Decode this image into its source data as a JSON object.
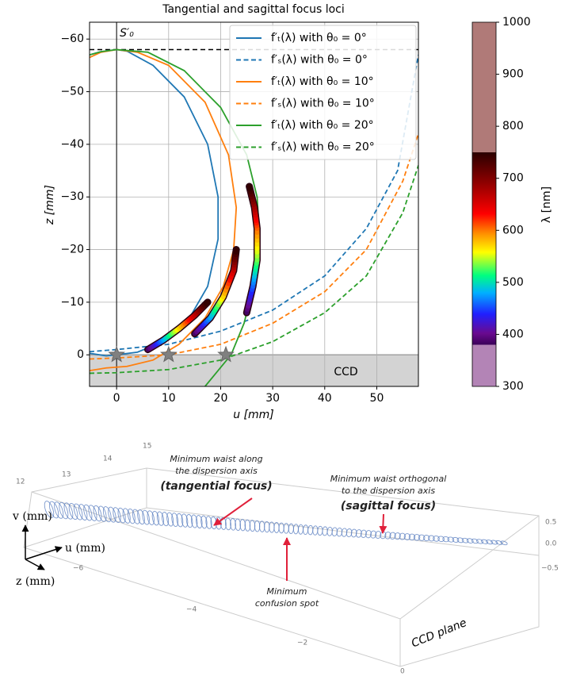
{
  "chart_data": {
    "type": "line",
    "title": "Tangential and sagittal focus loci",
    "xlabel": "u [mm]",
    "ylabel": "z [mm]",
    "xlim": [
      -5.2,
      58
    ],
    "ylim": [
      6,
      -63.2
    ],
    "xticks": [
      0,
      10,
      20,
      30,
      40,
      50
    ],
    "yticks": [
      0,
      {
        "value": -10,
        "label": "−10"
      },
      {
        "value": -20,
        "label": "−20"
      },
      {
        "value": -30,
        "label": "−30"
      },
      {
        "value": -40,
        "label": "−40"
      },
      {
        "value": -50,
        "label": "−50"
      },
      {
        "value": -60,
        "label": "−60"
      }
    ],
    "grid": true,
    "legend": "upper right",
    "series": [
      {
        "name": "f′ₜ(λ) with θ₀ = 0°",
        "color": "#1f77b4",
        "style": "solid",
        "x": [
          -5.2,
          -2,
          0,
          4,
          9,
          14,
          17.5,
          19.5,
          19.5,
          17.5,
          13,
          7,
          2,
          0,
          -3,
          -5.2
        ],
        "y": [
          -0.3,
          0.2,
          0,
          -0.5,
          -2.5,
          -7,
          -13,
          -22,
          -30,
          -40,
          -49,
          -55,
          -57.7,
          -58,
          -57.6,
          -57
        ]
      },
      {
        "name": "f′ₛ(λ) with θ₀ = 0°",
        "color": "#1f77b4",
        "style": "dashed",
        "x": [
          -5.2,
          0,
          10,
          20,
          30,
          40,
          48,
          54,
          58
        ],
        "y": [
          -0.6,
          -1,
          -2,
          -4.5,
          -8.5,
          -15,
          -24,
          -35,
          -57
        ]
      },
      {
        "name": "f′ₜ(λ) with θ₀ = 10°",
        "color": "#ff7f0e",
        "style": "solid",
        "x": [
          -5.2,
          -2,
          2,
          7,
          12,
          17,
          20.5,
          22.5,
          23,
          21.5,
          17,
          10,
          4,
          0,
          -3,
          -5.2
        ],
        "y": [
          3,
          2.5,
          2.2,
          1,
          -2,
          -7,
          -13,
          -20,
          -28,
          -38,
          -48,
          -55,
          -57.5,
          -58,
          -57.5,
          -56.5
        ]
      },
      {
        "name": "f′ₛ(λ) with θ₀ = 10°",
        "color": "#ff7f0e",
        "style": "dashed",
        "x": [
          -5.2,
          0,
          10,
          20,
          30,
          40,
          48,
          55,
          58
        ],
        "y": [
          0.8,
          0.6,
          0,
          -2,
          -6,
          -12,
          -20,
          -33,
          -42
        ]
      },
      {
        "name": "f′ₜ(λ) with θ₀ = 20°",
        "color": "#2ca02c",
        "style": "solid",
        "x": [
          17,
          19.5,
          22,
          24.5,
          26.5,
          27.5,
          27,
          25,
          20,
          13,
          6,
          0,
          -3,
          -5.2
        ],
        "y": [
          6,
          3,
          0,
          -6,
          -14,
          -22,
          -30,
          -38,
          -47,
          -54,
          -57.5,
          -58,
          -57.6,
          -57
        ]
      },
      {
        "name": "f′ₛ(λ) with θ₀ = 20°",
        "color": "#2ca02c",
        "style": "dashed",
        "x": [
          -5.2,
          0,
          10,
          20,
          30,
          40,
          48,
          55,
          58
        ],
        "y": [
          3.5,
          3.4,
          2.8,
          1,
          -2.5,
          -8,
          -15,
          -27,
          -36
        ]
      }
    ],
    "spectral_segments": [
      {
        "x": [
          6,
          9,
          12,
          15,
          17.5
        ],
        "y": [
          -1,
          -2.8,
          -5,
          -7.5,
          -10
        ]
      },
      {
        "x": [
          15,
          18,
          20.5,
          22.5,
          23
        ],
        "y": [
          -4,
          -7,
          -11,
          -16,
          -20
        ]
      },
      {
        "x": [
          25,
          26.2,
          27,
          27,
          26.5,
          25.5
        ],
        "y": [
          -8,
          -13,
          -18,
          -24,
          -28,
          -32
        ]
      }
    ],
    "stars": {
      "x": [
        0,
        10,
        21
      ],
      "y": [
        0,
        0,
        0
      ]
    },
    "focal_line_z": -58,
    "source_label": "S′₀",
    "ccd_label": "CCD",
    "colorbar": {
      "label": "λ [nm]",
      "lim": [
        300,
        1000
      ],
      "ticks": [
        300,
        400,
        500,
        600,
        700,
        800,
        900,
        1000
      ]
    }
  },
  "diagram": {
    "tangential_note": [
      "Minimum waist along",
      "the dispersion axis"
    ],
    "tangential_title": "(tangential focus)",
    "sagittal_note": [
      "Minimum waist orthogonal",
      "to the dispersion axis"
    ],
    "sagittal_title": "(sagittal focus)",
    "confusion_note": [
      "Minimum",
      "confusion spot"
    ],
    "plane_label": "CCD plane",
    "axis_v": "v (mm)",
    "axis_u": "u (mm)",
    "axis_z": "z (mm)",
    "back_ticks": [
      "12",
      "13",
      "14",
      "15"
    ],
    "depth_ticks": [
      "−6",
      "−4",
      "−2",
      "0"
    ],
    "side_ticks": [
      "0.5",
      "0.0",
      "−0.5"
    ]
  }
}
